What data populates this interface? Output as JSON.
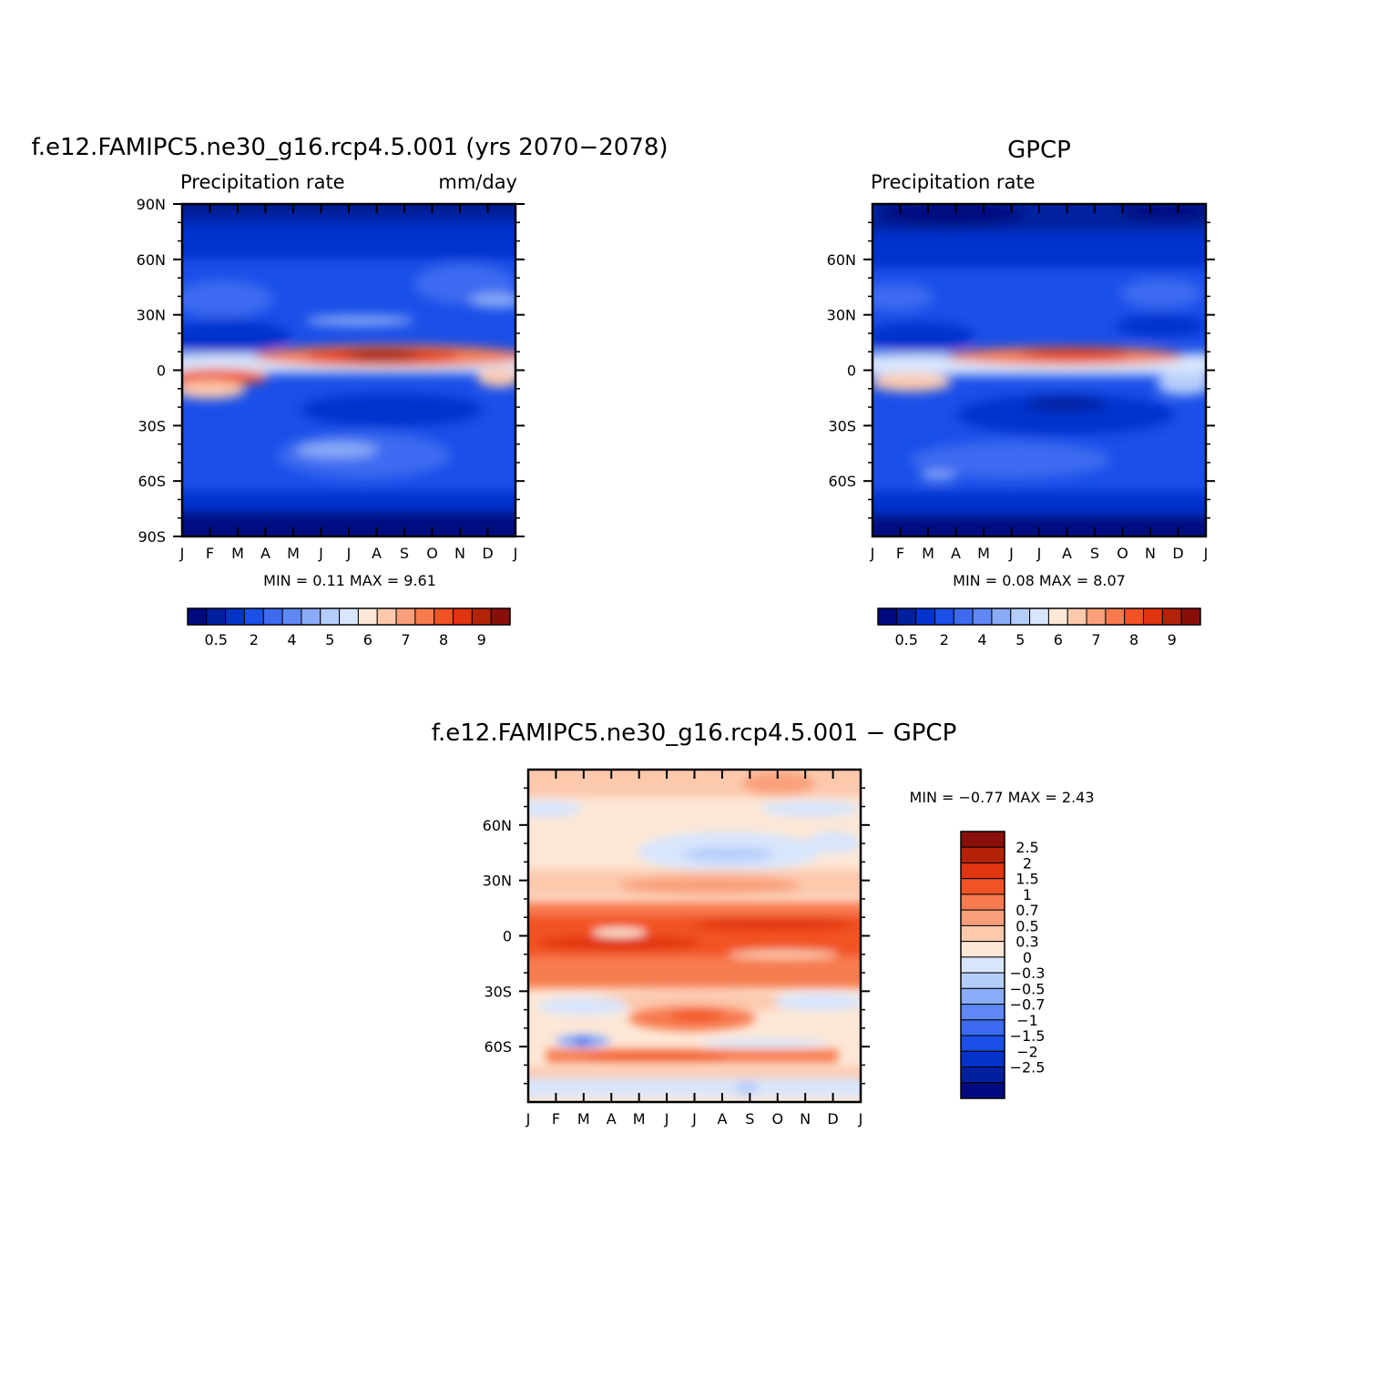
{
  "colors": {
    "precip_levels": [
      "#000a80",
      "#01209e",
      "#0433cc",
      "#1a4fe8",
      "#3c6af0",
      "#5f88f5",
      "#8aabf8",
      "#b5cdfb",
      "#d8e6fd",
      "#fde7d6",
      "#fcc9ad",
      "#f9a07a",
      "#f77b4f",
      "#f25224",
      "#e0350f",
      "#b42309",
      "#8a0f0a"
    ],
    "diff_levels": [
      "#8a0f0a",
      "#b42309",
      "#e0350f",
      "#f25224",
      "#f77b4f",
      "#f9a07a",
      "#fcc9ad",
      "#fde7d6",
      "#d8e6fd",
      "#b5cdfb",
      "#8aabf8",
      "#5f88f5",
      "#3c6af0",
      "#1a4fe8",
      "#0433cc",
      "#01209e",
      "#000a80"
    ]
  },
  "chart_data": [
    {
      "type": "heatmap",
      "name": "model",
      "title": "f.e12.FAMIPC5.ne30_g16.rcp4.5.001 (yrs 2070−2078)",
      "left_label": "Precipitation  rate",
      "right_label": "mm/day",
      "x_ticks": [
        "J",
        "F",
        "M",
        "A",
        "M",
        "J",
        "J",
        "A",
        "S",
        "O",
        "N",
        "D",
        "J"
      ],
      "y_ticks": [
        "90N",
        "60N",
        "30N",
        "0",
        "30S",
        "60S",
        "90S"
      ],
      "ylim": [
        -90,
        90
      ],
      "stat_text": "MIN =    0.11  MAX =    9.61",
      "min": 0.11,
      "max": 9.61,
      "colorbar_labels": [
        "0.5",
        "2",
        "4",
        "5",
        "6",
        "7",
        "8",
        "9"
      ]
    },
    {
      "type": "heatmap",
      "name": "obs",
      "title": "GPCP",
      "left_label": "Precipitation  rate",
      "x_ticks": [
        "J",
        "F",
        "M",
        "A",
        "M",
        "J",
        "J",
        "A",
        "S",
        "O",
        "N",
        "D",
        "J"
      ],
      "y_ticks": [
        "60N",
        "30N",
        "0",
        "30S",
        "60S"
      ],
      "ylim": [
        -90,
        90
      ],
      "stat_text": "MIN =    0.08  MAX =    8.07",
      "min": 0.08,
      "max": 8.07,
      "colorbar_labels": [
        "0.5",
        "2",
        "4",
        "5",
        "6",
        "7",
        "8",
        "9"
      ]
    },
    {
      "type": "heatmap",
      "name": "diff",
      "title": "f.e12.FAMIPC5.ne30_g16.rcp4.5.001  −  GPCP",
      "x_ticks": [
        "J",
        "F",
        "M",
        "A",
        "M",
        "J",
        "J",
        "A",
        "S",
        "O",
        "N",
        "D",
        "J"
      ],
      "y_ticks": [
        "60N",
        "30N",
        "0",
        "30S",
        "60S"
      ],
      "ylim": [
        -90,
        90
      ],
      "stat_text": "MIN =   −0.77  MAX =    2.43",
      "min": -0.77,
      "max": 2.43,
      "colorbar_labels": [
        "2.5",
        "2",
        "1.5",
        "1",
        "0.7",
        "0.5",
        "0.3",
        "0",
        "−0.3",
        "−0.5",
        "−0.7",
        "−1",
        "−1.5",
        "−2",
        "−2.5"
      ]
    }
  ]
}
